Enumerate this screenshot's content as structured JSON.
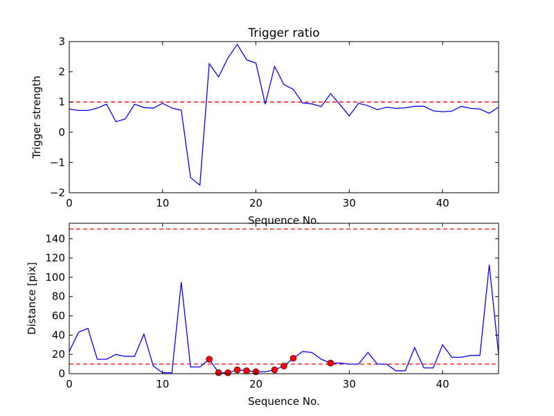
{
  "chart_data": [
    {
      "type": "line",
      "title": "Trigger ratio",
      "xlabel": "Sequence No.",
      "ylabel": "Trigger strength",
      "xlim": [
        0,
        46
      ],
      "ylim": [
        -2,
        3
      ],
      "xticks": [
        "0",
        "10",
        "20",
        "30",
        "40"
      ],
      "yticks": [
        "−2",
        "−1",
        "0",
        "1",
        "2",
        "3"
      ],
      "threshold_lines": [
        {
          "value": 1,
          "color": "#ff0000",
          "style": "dashed"
        }
      ],
      "series": [
        {
          "name": "trigger strength",
          "color": "#0000ff",
          "values": [
            0.77,
            0.72,
            0.72,
            0.8,
            0.93,
            0.35,
            0.44,
            0.93,
            0.82,
            0.8,
            0.96,
            0.8,
            0.73,
            -1.5,
            -1.75,
            2.27,
            1.83,
            2.46,
            2.91,
            2.4,
            2.29,
            0.93,
            2.18,
            1.58,
            1.42,
            0.97,
            0.94,
            0.85,
            1.28,
            0.92,
            0.54,
            0.96,
            0.88,
            0.75,
            0.83,
            0.79,
            0.81,
            0.86,
            0.86,
            0.71,
            0.68,
            0.7,
            0.86,
            0.79,
            0.77,
            0.63,
            0.83
          ]
        }
      ]
    },
    {
      "type": "line",
      "title": "",
      "xlabel": "Sequence No.",
      "ylabel": "Distance [pix]",
      "xlim": [
        0,
        46
      ],
      "ylim": [
        0,
        156
      ],
      "xticks": [
        "0",
        "10",
        "20",
        "30",
        "40"
      ],
      "yticks": [
        "0",
        "20",
        "40",
        "60",
        "80",
        "100",
        "120",
        "140"
      ],
      "threshold_lines": [
        {
          "value": 10,
          "color": "#ff0000",
          "style": "dashed"
        },
        {
          "value": 150,
          "color": "#ff0000",
          "style": "dashed"
        }
      ],
      "series": [
        {
          "name": "distance",
          "color": "#0000ff",
          "values": [
            23,
            43,
            47,
            15,
            15,
            20,
            18,
            18,
            41,
            8,
            1,
            1,
            95,
            7,
            7,
            15,
            1,
            1,
            4,
            3,
            2,
            2,
            4,
            8,
            16,
            23,
            22,
            15,
            11,
            11,
            10,
            10,
            22,
            10,
            10,
            3,
            3,
            27,
            6,
            6,
            30,
            17,
            17,
            19,
            19,
            113,
            20
          ]
        }
      ],
      "markers": {
        "color": "#ff0000",
        "x": [
          15,
          16,
          17,
          18,
          19,
          20,
          22,
          23,
          24,
          28
        ]
      }
    }
  ]
}
